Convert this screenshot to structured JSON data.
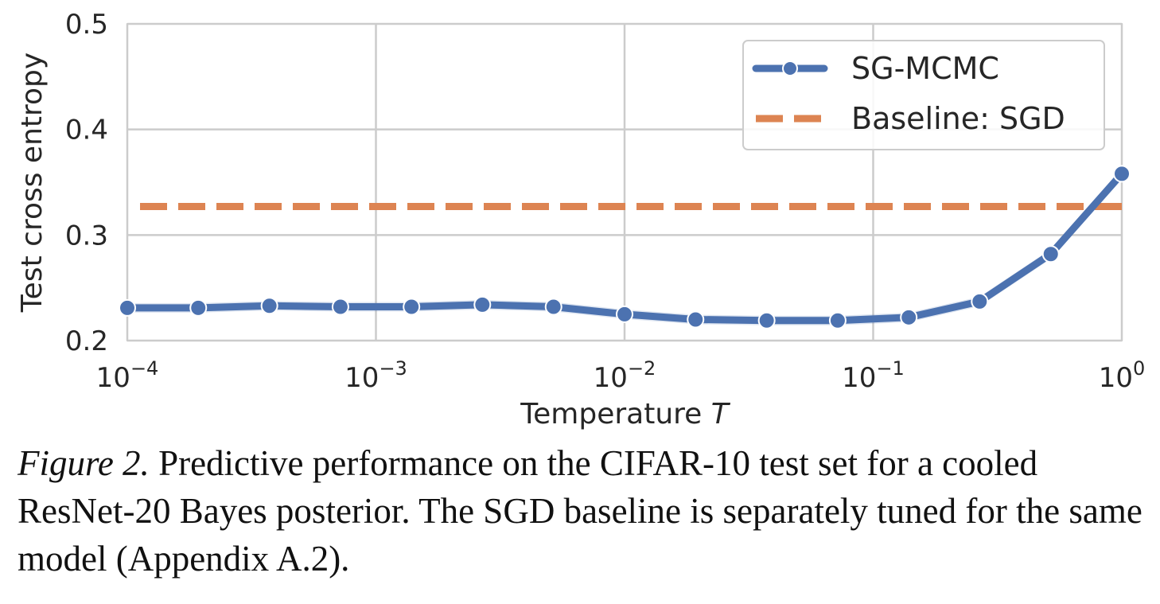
{
  "chart_data": {
    "type": "line",
    "xlabel": "Temperature",
    "xlabel_var": "T",
    "ylabel": "Test cross entropy",
    "x_scale": "log",
    "xlim": [
      0.0001,
      1
    ],
    "ylim": [
      0.2,
      0.5
    ],
    "x_ticks": [
      {
        "base": "10",
        "exp": "−4",
        "value": 0.0001
      },
      {
        "base": "10",
        "exp": "−3",
        "value": 0.001
      },
      {
        "base": "10",
        "exp": "−2",
        "value": 0.01
      },
      {
        "base": "10",
        "exp": "−1",
        "value": 0.1
      },
      {
        "base": "10",
        "exp": "0",
        "value": 1
      }
    ],
    "y_ticks": [
      "0.2",
      "0.3",
      "0.4",
      "0.5"
    ],
    "y_tick_values": [
      0.2,
      0.3,
      0.4,
      0.5
    ],
    "grid": true,
    "legend_position": "top-right",
    "series": [
      {
        "name": "SG-MCMC",
        "color": "#4c72b0",
        "style": "solid-with-markers",
        "x": [
          0.0001,
          0.000193,
          0.000373,
          0.00072,
          0.00139,
          0.00268,
          0.00518,
          0.01,
          0.0193,
          0.0373,
          0.072,
          0.139,
          0.268,
          0.518,
          1.0
        ],
        "y": [
          0.231,
          0.231,
          0.233,
          0.232,
          0.232,
          0.234,
          0.232,
          0.225,
          0.22,
          0.219,
          0.219,
          0.222,
          0.237,
          0.282,
          0.358
        ]
      },
      {
        "name": "Baseline: SGD",
        "color": "#dd8452",
        "style": "dashed",
        "y": 0.327
      }
    ]
  },
  "caption": {
    "figure_label": "Figure 2.",
    "text": " Predictive performance on the CIFAR-10 test set for a cooled ResNet-20 Bayes posterior. The SGD baseline is separately tuned for the same model (Appendix A.2)."
  }
}
